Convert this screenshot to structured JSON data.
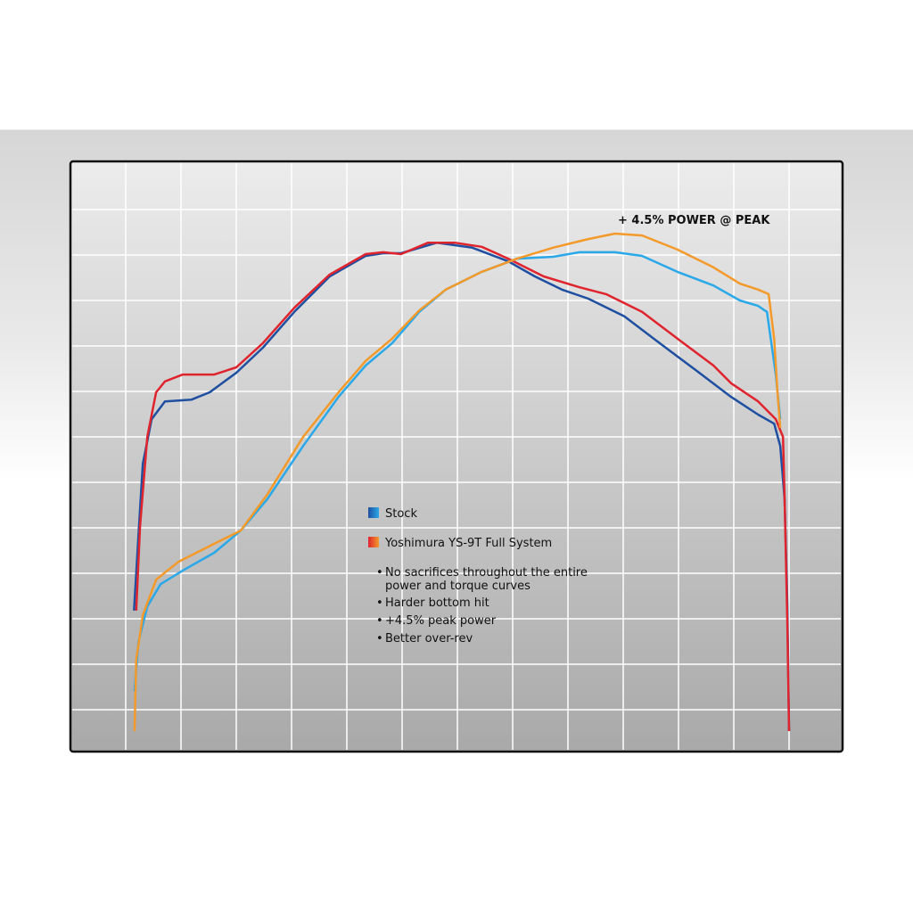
{
  "chart_data": {
    "type": "line",
    "title": "",
    "xlabel": "",
    "ylabel": "",
    "grid": true,
    "xlim": [
      0,
      14
    ],
    "ylim": [
      0,
      13
    ],
    "annotation": "+ 4.5% POWER @ PEAK",
    "legend": {
      "placement": "center",
      "entries": [
        {
          "label": "Stock",
          "colors": [
            "#1f4fa0",
            "#2aa8e8"
          ]
        },
        {
          "label": "Yoshimura YS-9T Full System",
          "colors": [
            "#e0242e",
            "#f39a2a"
          ]
        }
      ],
      "bullets": [
        "No sacrifices throughout the entire power and torque curves",
        "Harder bottom hit",
        "+4.5% peak power",
        "Better over-rev"
      ]
    },
    "series": [
      {
        "color": "#1f4fa0",
        "points": [
          [
            1.15,
            3.18
          ],
          [
            1.23,
            4.84
          ],
          [
            1.31,
            6.41
          ],
          [
            1.47,
            7.39
          ],
          [
            1.71,
            7.78
          ],
          [
            2.19,
            7.82
          ],
          [
            2.52,
            7.98
          ],
          [
            3.0,
            8.41
          ],
          [
            3.48,
            8.96
          ],
          [
            4.05,
            9.75
          ],
          [
            4.69,
            10.53
          ],
          [
            5.34,
            10.98
          ],
          [
            5.66,
            11.04
          ],
          [
            5.98,
            11.04
          ],
          [
            6.63,
            11.27
          ],
          [
            7.27,
            11.16
          ],
          [
            7.92,
            10.86
          ],
          [
            8.4,
            10.53
          ],
          [
            8.89,
            10.24
          ],
          [
            9.37,
            10.04
          ],
          [
            10.02,
            9.65
          ],
          [
            10.66,
            9.06
          ],
          [
            11.31,
            8.47
          ],
          [
            11.95,
            7.88
          ],
          [
            12.44,
            7.49
          ],
          [
            12.73,
            7.29
          ],
          [
            12.84,
            6.8
          ],
          [
            12.92,
            5.63
          ],
          [
            12.97,
            3.27
          ],
          [
            13.0,
            0.53
          ]
        ]
      },
      {
        "color": "#e0242e",
        "points": [
          [
            1.19,
            3.18
          ],
          [
            1.26,
            5.04
          ],
          [
            1.39,
            7.0
          ],
          [
            1.55,
            7.98
          ],
          [
            1.71,
            8.22
          ],
          [
            2.03,
            8.37
          ],
          [
            2.6,
            8.37
          ],
          [
            3.0,
            8.53
          ],
          [
            3.48,
            9.06
          ],
          [
            4.05,
            9.84
          ],
          [
            4.69,
            10.57
          ],
          [
            5.34,
            11.02
          ],
          [
            5.66,
            11.06
          ],
          [
            5.98,
            11.02
          ],
          [
            6.47,
            11.27
          ],
          [
            6.95,
            11.27
          ],
          [
            7.44,
            11.18
          ],
          [
            7.92,
            10.92
          ],
          [
            8.56,
            10.53
          ],
          [
            9.21,
            10.29
          ],
          [
            9.69,
            10.14
          ],
          [
            10.34,
            9.75
          ],
          [
            10.98,
            9.16
          ],
          [
            11.63,
            8.57
          ],
          [
            11.95,
            8.18
          ],
          [
            12.44,
            7.78
          ],
          [
            12.76,
            7.39
          ],
          [
            12.89,
            7.0
          ],
          [
            12.92,
            5.63
          ],
          [
            12.97,
            2.88
          ],
          [
            13.0,
            0.53
          ]
        ]
      },
      {
        "color": "#2aa8e8",
        "points": [
          [
            1.16,
            1.41
          ],
          [
            1.23,
            2.49
          ],
          [
            1.39,
            3.27
          ],
          [
            1.63,
            3.76
          ],
          [
            2.03,
            4.06
          ],
          [
            2.6,
            4.45
          ],
          [
            3.08,
            4.94
          ],
          [
            3.56,
            5.63
          ],
          [
            4.21,
            6.8
          ],
          [
            4.85,
            7.88
          ],
          [
            5.34,
            8.57
          ],
          [
            5.82,
            9.06
          ],
          [
            6.31,
            9.75
          ],
          [
            6.79,
            10.24
          ],
          [
            7.44,
            10.63
          ],
          [
            8.08,
            10.92
          ],
          [
            8.73,
            10.96
          ],
          [
            9.21,
            11.06
          ],
          [
            9.85,
            11.06
          ],
          [
            10.34,
            10.98
          ],
          [
            10.98,
            10.63
          ],
          [
            11.63,
            10.33
          ],
          [
            12.11,
            10.0
          ],
          [
            12.44,
            9.88
          ],
          [
            12.6,
            9.75
          ],
          [
            12.76,
            8.37
          ],
          [
            12.84,
            7.39
          ]
        ]
      },
      {
        "color": "#f39a2a",
        "points": [
          [
            1.16,
            0.53
          ],
          [
            1.19,
            2.1
          ],
          [
            1.31,
            3.08
          ],
          [
            1.55,
            3.86
          ],
          [
            1.95,
            4.25
          ],
          [
            2.6,
            4.65
          ],
          [
            3.08,
            4.94
          ],
          [
            3.56,
            5.73
          ],
          [
            4.21,
            7.0
          ],
          [
            4.85,
            7.98
          ],
          [
            5.34,
            8.67
          ],
          [
            5.82,
            9.16
          ],
          [
            6.31,
            9.78
          ],
          [
            6.79,
            10.24
          ],
          [
            7.44,
            10.63
          ],
          [
            8.08,
            10.92
          ],
          [
            8.73,
            11.16
          ],
          [
            9.37,
            11.35
          ],
          [
            9.85,
            11.47
          ],
          [
            10.34,
            11.43
          ],
          [
            10.98,
            11.12
          ],
          [
            11.63,
            10.73
          ],
          [
            12.11,
            10.37
          ],
          [
            12.44,
            10.24
          ],
          [
            12.63,
            10.14
          ],
          [
            12.73,
            9.16
          ],
          [
            12.79,
            7.98
          ],
          [
            12.84,
            7.2
          ]
        ]
      }
    ]
  }
}
